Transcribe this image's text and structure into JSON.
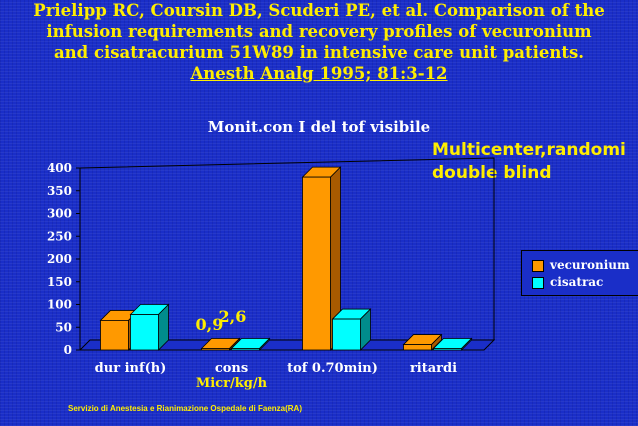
{
  "title": {
    "line1": "Prielipp RC, Coursin DB, Scuderi PE, et al. Comparison of the",
    "line2": "infusion requirements and recovery profiles of vecuronium",
    "line3": "and cisatracurium 51W89 in intensive care unit patients.",
    "citation": "Anesth Analg 1995; 81:3-12"
  },
  "note": {
    "line1": "Multicenter,randomi",
    "line2": "double blind"
  },
  "footer": "Servizio di Anestesia e Rianimazione Ospedale di Faenza(RA)",
  "colors": {
    "vecuronium": "#ff9900",
    "cisatrac": "#00ffff",
    "text_accent": "#ffee00",
    "background": "#1a2ec8"
  },
  "chart_data": {
    "type": "bar",
    "title": "Monit.con I del tof visibile",
    "categories": [
      "dur inf(h)",
      "cons",
      "tof 0.70min)",
      "ritardi"
    ],
    "series": [
      {
        "name": "vecuronium",
        "values": [
          65,
          0.9,
          380,
          12
        ]
      },
      {
        "name": "cisatrac",
        "values": [
          78,
          2.6,
          68,
          3
        ]
      }
    ],
    "ylim": [
      0,
      400
    ],
    "yticks": [
      0,
      50,
      100,
      150,
      200,
      250,
      300,
      350,
      400
    ],
    "grid": false,
    "legend": "right",
    "annotations": [
      {
        "text": "0,9"
      },
      {
        "text": "2,6"
      },
      {
        "text": "Micr/kg/h"
      }
    ]
  }
}
